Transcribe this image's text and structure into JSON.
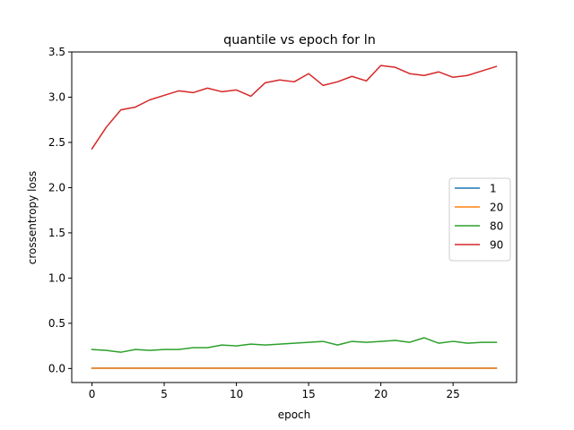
{
  "chart_data": {
    "type": "line",
    "title": "quantile vs epoch for ln",
    "xlabel": "epoch",
    "ylabel": "crossentropy loss",
    "xlim": [
      -1.4,
      29.4
    ],
    "ylim": [
      -0.155,
      3.5
    ],
    "xticks": [
      0,
      5,
      10,
      15,
      20,
      25
    ],
    "xtick_labels": [
      "0",
      "5",
      "10",
      "15",
      "20",
      "25"
    ],
    "yticks": [
      0.0,
      0.5,
      1.0,
      1.5,
      2.0,
      2.5,
      3.0,
      3.5
    ],
    "ytick_labels": [
      "0.0",
      "0.5",
      "1.0",
      "1.5",
      "2.0",
      "2.5",
      "3.0",
      "3.5"
    ],
    "grid": false,
    "legend_position": "center-right",
    "x": [
      0,
      1,
      2,
      3,
      4,
      5,
      6,
      7,
      8,
      9,
      10,
      11,
      12,
      13,
      14,
      15,
      16,
      17,
      18,
      19,
      20,
      21,
      22,
      23,
      24,
      25,
      26,
      27,
      28
    ],
    "series": [
      {
        "name": "1",
        "color": "#1f77b4",
        "values": [
          0.003,
          0.003,
          0.003,
          0.003,
          0.003,
          0.003,
          0.003,
          0.003,
          0.003,
          0.003,
          0.003,
          0.003,
          0.003,
          0.003,
          0.003,
          0.003,
          0.003,
          0.003,
          0.003,
          0.003,
          0.003,
          0.003,
          0.003,
          0.003,
          0.003,
          0.003,
          0.003,
          0.003,
          0.003
        ]
      },
      {
        "name": "20",
        "color": "#ff7f0e",
        "values": [
          0.004,
          0.004,
          0.004,
          0.004,
          0.004,
          0.004,
          0.004,
          0.004,
          0.004,
          0.004,
          0.004,
          0.004,
          0.004,
          0.004,
          0.004,
          0.004,
          0.004,
          0.004,
          0.004,
          0.004,
          0.004,
          0.004,
          0.004,
          0.004,
          0.004,
          0.004,
          0.004,
          0.004,
          0.004
        ]
      },
      {
        "name": "80",
        "color": "#2ca02c",
        "values": [
          0.21,
          0.2,
          0.18,
          0.21,
          0.2,
          0.21,
          0.21,
          0.23,
          0.23,
          0.26,
          0.25,
          0.27,
          0.26,
          0.27,
          0.28,
          0.29,
          0.3,
          0.26,
          0.3,
          0.29,
          0.3,
          0.31,
          0.29,
          0.34,
          0.28,
          0.3,
          0.28,
          0.29,
          0.29
        ]
      },
      {
        "name": "90",
        "color": "#d62728",
        "values": [
          2.43,
          2.67,
          2.86,
          2.89,
          2.97,
          3.02,
          3.07,
          3.05,
          3.1,
          3.06,
          3.08,
          3.01,
          3.16,
          3.19,
          3.17,
          3.26,
          3.13,
          3.17,
          3.23,
          3.18,
          3.35,
          3.33,
          3.26,
          3.24,
          3.28,
          3.22,
          3.24,
          3.29,
          3.34
        ]
      }
    ]
  }
}
